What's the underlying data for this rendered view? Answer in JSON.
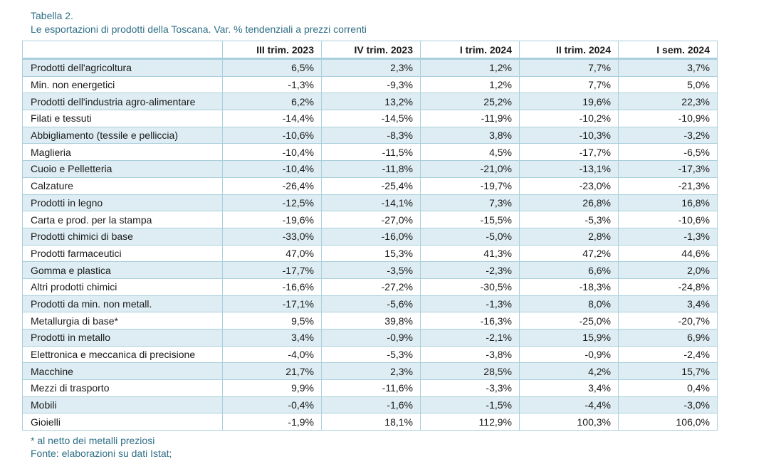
{
  "caption": {
    "title": "Tabella 2.",
    "subtitle": "Le esportazioni di prodotti della Toscana. Var. % tendenziali a prezzi correnti"
  },
  "table": {
    "headers": [
      "",
      "III trim. 2023",
      "IV trim. 2023",
      "I trim. 2024",
      "II trim. 2024",
      "I sem. 2024"
    ],
    "rows": [
      [
        "Prodotti dell'agricoltura",
        "6,5%",
        "2,3%",
        "1,2%",
        "7,7%",
        "3,7%"
      ],
      [
        "Min. non energetici",
        "-1,3%",
        "-9,3%",
        "1,2%",
        "7,7%",
        "5,0%"
      ],
      [
        "Prodotti dell'industria agro-alimentare",
        "6,2%",
        "13,2%",
        "25,2%",
        "19,6%",
        "22,3%"
      ],
      [
        "Filati e tessuti",
        "-14,4%",
        "-14,5%",
        "-11,9%",
        "-10,2%",
        "-10,9%"
      ],
      [
        "Abbigliamento (tessile e pelliccia)",
        "-10,6%",
        "-8,3%",
        "3,8%",
        "-10,3%",
        "-3,2%"
      ],
      [
        "Maglieria",
        "-10,4%",
        "-11,5%",
        "4,5%",
        "-17,7%",
        "-6,5%"
      ],
      [
        "Cuoio e Pelletteria",
        "-10,4%",
        "-11,8%",
        "-21,0%",
        "-13,1%",
        "-17,3%"
      ],
      [
        "Calzature",
        "-26,4%",
        "-25,4%",
        "-19,7%",
        "-23,0%",
        "-21,3%"
      ],
      [
        "Prodotti in legno",
        "-12,5%",
        "-14,1%",
        "7,3%",
        "26,8%",
        "16,8%"
      ],
      [
        "Carta e prod. per la stampa",
        "-19,6%",
        "-27,0%",
        "-15,5%",
        "-5,3%",
        "-10,6%"
      ],
      [
        "Prodotti chimici di base",
        "-33,0%",
        "-16,0%",
        "-5,0%",
        "2,8%",
        "-1,3%"
      ],
      [
        "Prodotti farmaceutici",
        "47,0%",
        "15,3%",
        "41,3%",
        "47,2%",
        "44,6%"
      ],
      [
        "Gomma e plastica",
        "-17,7%",
        "-3,5%",
        "-2,3%",
        "6,6%",
        "2,0%"
      ],
      [
        "Altri prodotti chimici",
        "-16,6%",
        "-27,2%",
        "-30,5%",
        "-18,3%",
        "-24,8%"
      ],
      [
        "Prodotti da min. non metall.",
        "-17,1%",
        "-5,6%",
        "-1,3%",
        "8,0%",
        "3,4%"
      ],
      [
        "Metallurgia di base*",
        "9,5%",
        "39,8%",
        "-16,3%",
        "-25,0%",
        "-20,7%"
      ],
      [
        "Prodotti in metallo",
        "3,4%",
        "-0,9%",
        "-2,1%",
        "15,9%",
        "6,9%"
      ],
      [
        "Elettronica e meccanica di precisione",
        "-4,0%",
        "-5,3%",
        "-3,8%",
        "-0,9%",
        "-2,4%"
      ],
      [
        "Macchine",
        "21,7%",
        "2,3%",
        "28,5%",
        "4,2%",
        "15,7%"
      ],
      [
        "Mezzi di trasporto",
        "9,9%",
        "-11,6%",
        "-3,3%",
        "3,4%",
        "0,4%"
      ],
      [
        "Mobili",
        "-0,4%",
        "-1,6%",
        "-1,5%",
        "-4,4%",
        "-3,0%"
      ],
      [
        "Gioielli",
        "-1,9%",
        "18,1%",
        "112,9%",
        "100,3%",
        "106,0%"
      ]
    ]
  },
  "notes": {
    "footnote": "* al netto dei metalli preziosi",
    "source": "Fonte: elaborazioni su dati Istat;"
  },
  "colors": {
    "caption_text": "#2f6f86",
    "stripe": "#deedf3",
    "border": "#a9cfdc"
  }
}
